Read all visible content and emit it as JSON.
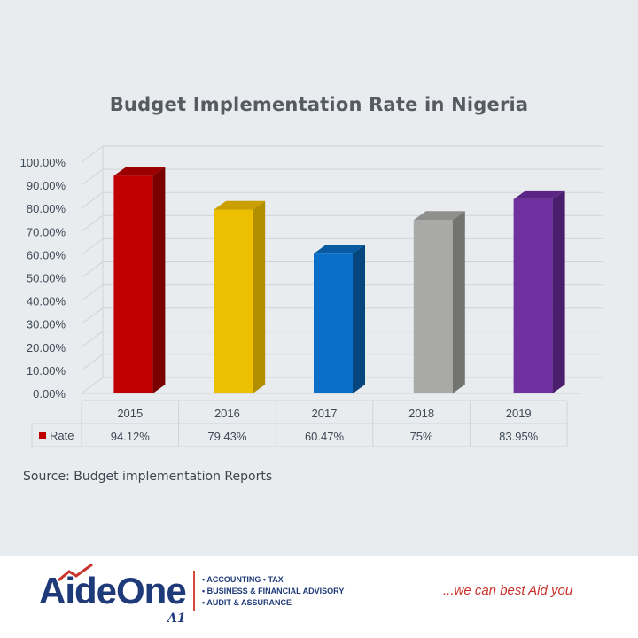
{
  "chart_data": {
    "type": "bar",
    "title": "Budget Implementation Rate in Nigeria",
    "categories": [
      "2015",
      "2016",
      "2017",
      "2018",
      "2019"
    ],
    "series": [
      {
        "name": "Rate",
        "values": [
          94.12,
          79.43,
          60.47,
          75,
          83.95
        ],
        "labels": [
          "94.12%",
          "79.43%",
          "60.47%",
          "75%",
          "83.95%"
        ]
      }
    ],
    "bar_colors": [
      "#c00000",
      "#ecc000",
      "#0a6fc9",
      "#a9a9a7",
      "#7030a0"
    ],
    "bar_side_colors": [
      "#7a0000",
      "#b38f00",
      "#05467f",
      "#737371",
      "#4a1d6d"
    ],
    "bar_top_colors": [
      "#9a0000",
      "#cc9f00",
      "#085aa3",
      "#8f8f8d",
      "#5a2585"
    ],
    "legend_marker_color": "#c00000",
    "ylim": [
      0,
      100
    ],
    "yticks": [
      "0.00%",
      "10.00%",
      "20.00%",
      "30.00%",
      "40.00%",
      "50.00%",
      "60.00%",
      "70.00%",
      "80.00%",
      "90.00%",
      "100.00%"
    ],
    "data_table": true,
    "style": "3d-column",
    "grid": true
  },
  "source": "Source: Budget implementation Reports",
  "footer": {
    "logo_part1": "Aide",
    "logo_part2": "One",
    "logo_mark": "A1",
    "services": [
      "• ACCOUNTING • TAX",
      "• BUSINESS & FINANCIAL ADVISORY",
      "• AUDIT & ASSURANCE"
    ],
    "tagline": "...we can best Aid you"
  }
}
